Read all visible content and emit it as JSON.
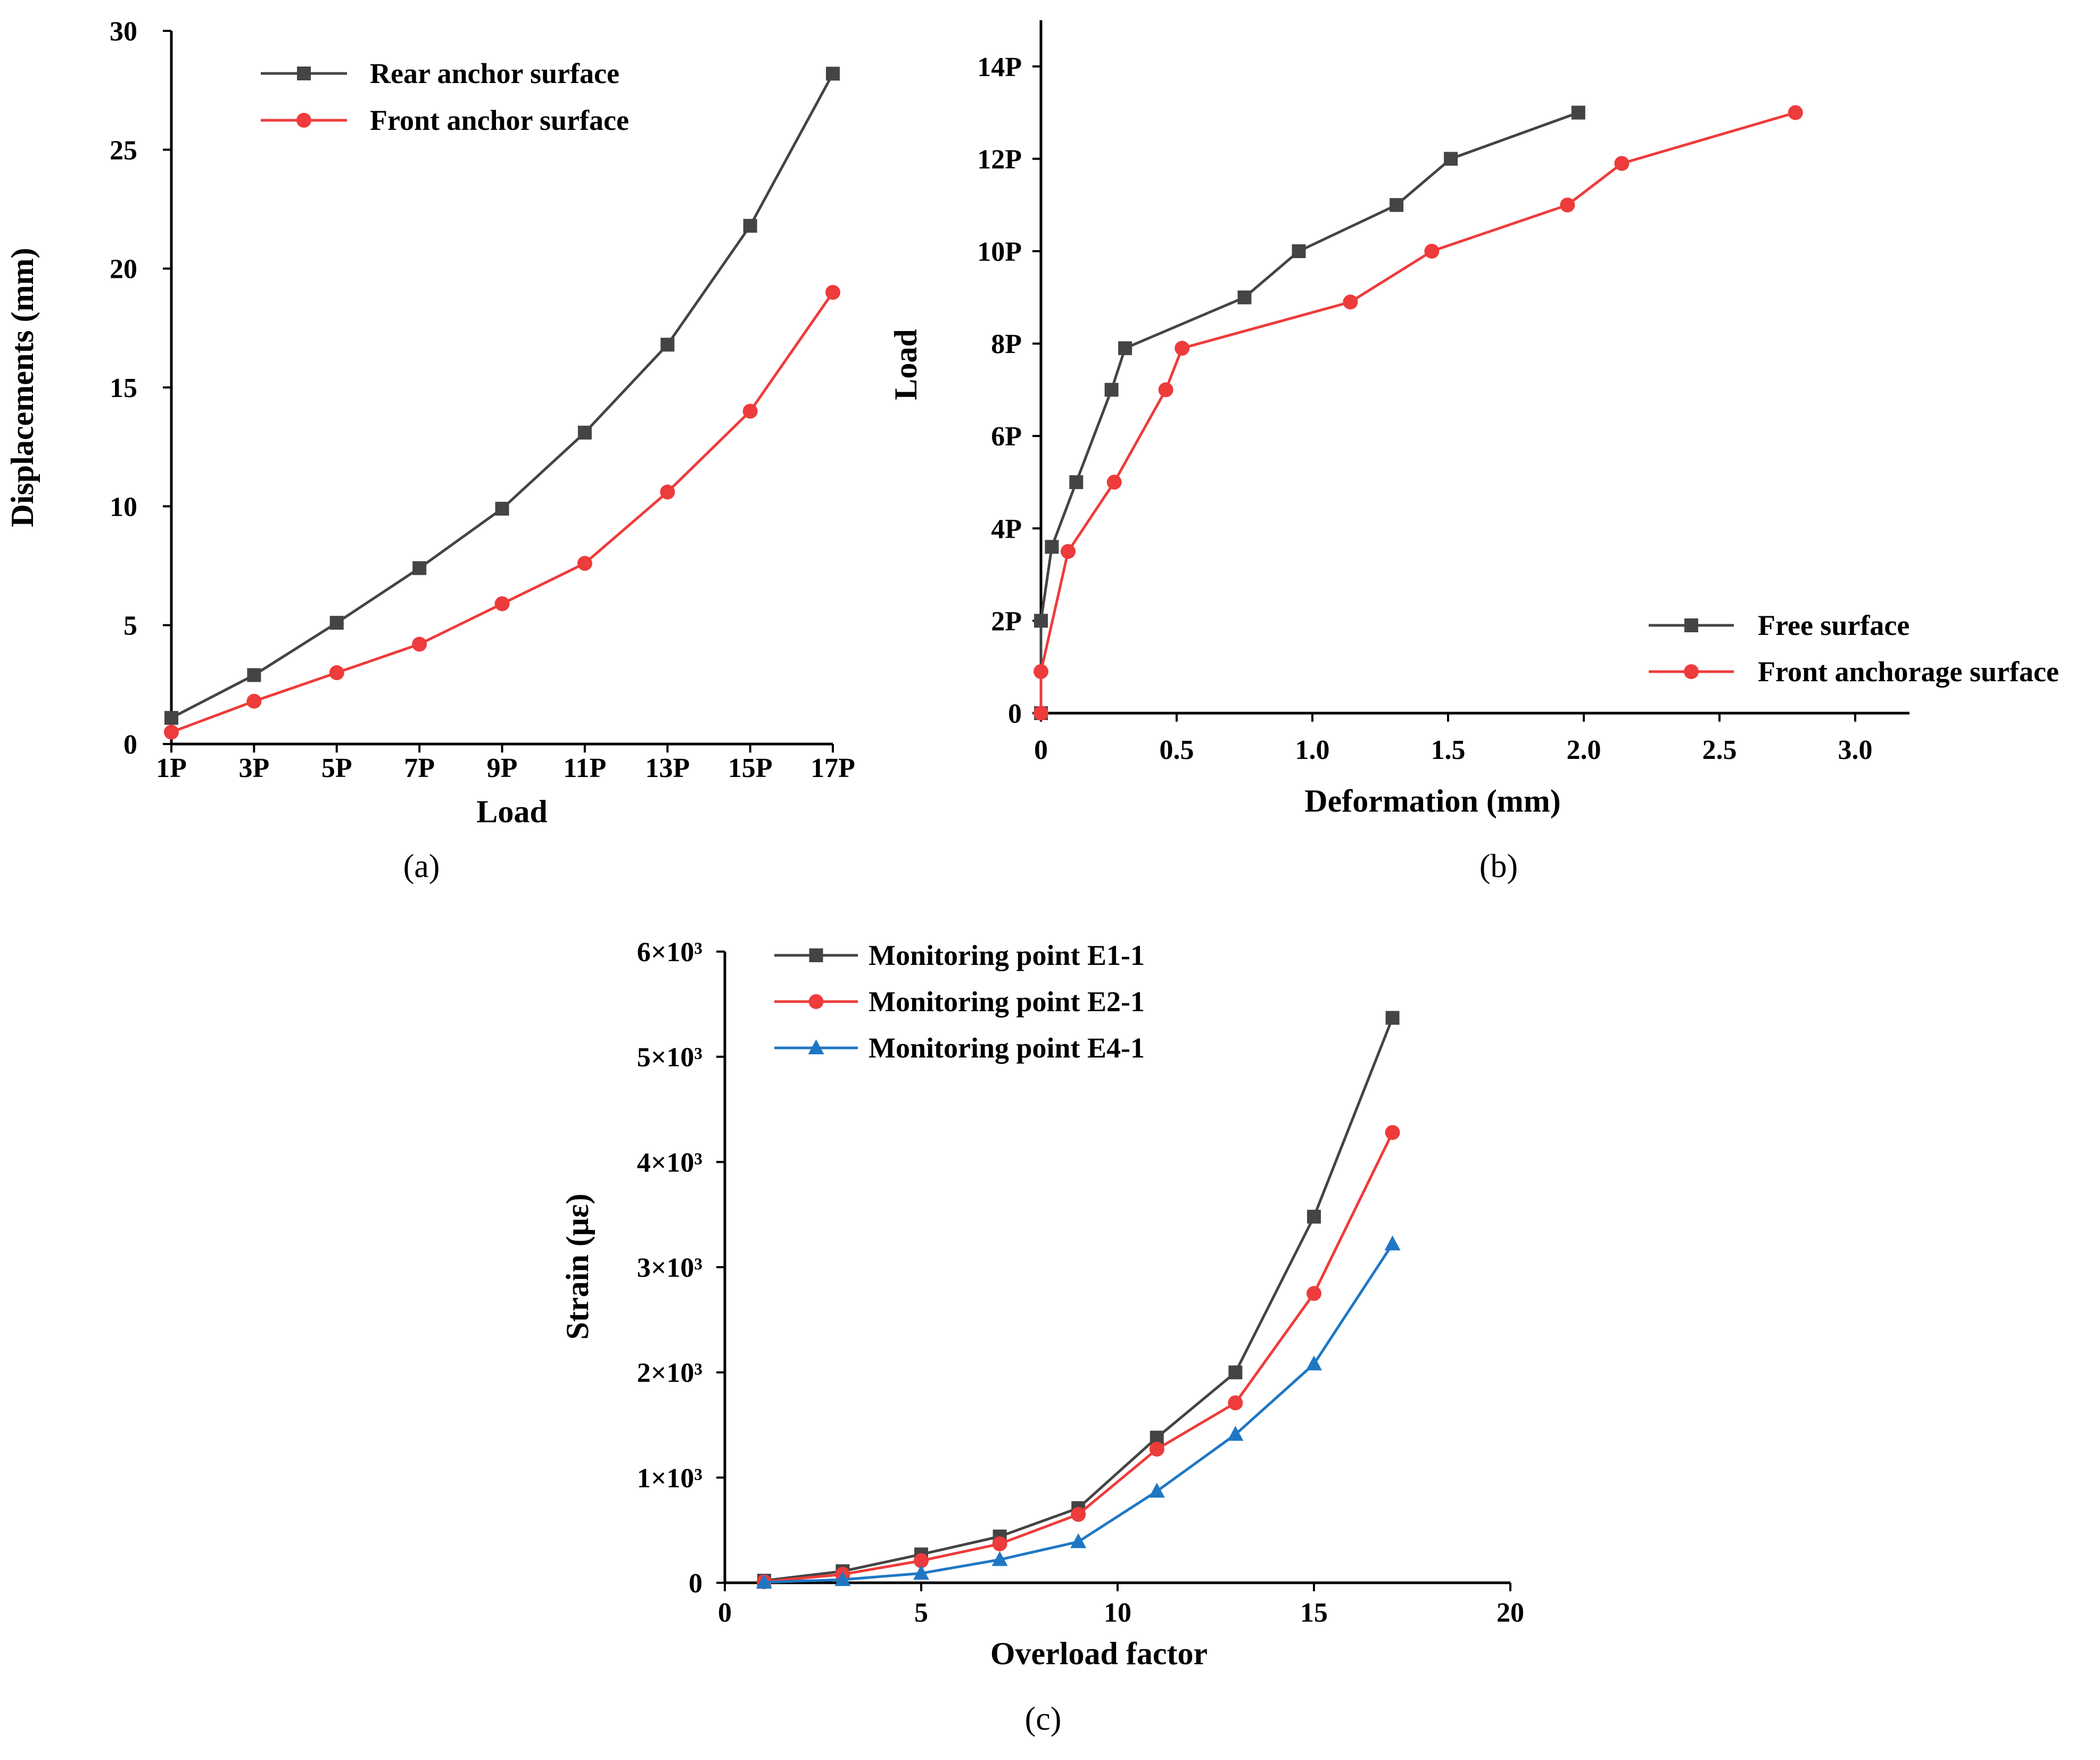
{
  "chart_data": [
    {
      "id": "a",
      "type": "line",
      "panel_label": "(a)",
      "xlabel": "Load",
      "ylabel": "Displacements (mm)",
      "x": [
        1,
        3,
        5,
        7,
        9,
        11,
        13,
        15,
        17
      ],
      "xticks": [
        1,
        3,
        5,
        7,
        9,
        11,
        13,
        15,
        17
      ],
      "xtick_labels": [
        "1P",
        "3P",
        "5P",
        "7P",
        "9P",
        "11P",
        "13P",
        "15P",
        "17P"
      ],
      "xlim": [
        1,
        17
      ],
      "yticks": [
        0,
        5,
        10,
        15,
        20,
        25,
        30
      ],
      "ytick_labels": [
        "0",
        "5",
        "10",
        "15",
        "20",
        "25",
        "30"
      ],
      "ylim": [
        0,
        30
      ],
      "legend_position": "top-left",
      "series": [
        {
          "name": "Rear anchor surface",
          "color": "#444444",
          "marker": "square",
          "values": [
            1.1,
            2.9,
            5.1,
            7.4,
            9.9,
            13.1,
            16.8,
            21.8,
            28.2
          ]
        },
        {
          "name": "Front anchor surface",
          "color": "#ee3b3b",
          "marker": "circle",
          "values": [
            0.5,
            1.8,
            3.0,
            4.2,
            5.9,
            7.6,
            10.6,
            14.0,
            19.0
          ]
        }
      ]
    },
    {
      "id": "b",
      "type": "line",
      "panel_label": "(b)",
      "xlabel": "Deformation (mm)",
      "ylabel": "Load",
      "xticks": [
        0,
        0.5,
        1.0,
        1.5,
        2.0,
        2.5,
        3.0
      ],
      "xtick_labels": [
        "0",
        "0.5",
        "1.0",
        "1.5",
        "2.0",
        "2.5",
        "3.0"
      ],
      "xlim": [
        0,
        3.2
      ],
      "yticks": [
        0,
        2,
        4,
        6,
        8,
        10,
        12,
        14
      ],
      "ytick_labels": [
        "0",
        "2P",
        "4P",
        "6P",
        "8P",
        "10P",
        "12P",
        "14P"
      ],
      "ylim": [
        0,
        15
      ],
      "legend_position": "bottom-right",
      "series": [
        {
          "name": "Free surface",
          "color": "#444444",
          "marker": "square",
          "points": [
            [
              0,
              0
            ],
            [
              0,
              2.0
            ],
            [
              0.04,
              3.6
            ],
            [
              0.13,
              5.0
            ],
            [
              0.26,
              7.0
            ],
            [
              0.31,
              7.9
            ],
            [
              0.75,
              9.0
            ],
            [
              0.95,
              10.0
            ],
            [
              1.31,
              11.0
            ],
            [
              1.51,
              12.0
            ],
            [
              1.98,
              13.0
            ]
          ]
        },
        {
          "name": "Front anchorage surface",
          "color": "#ee3b3b",
          "marker": "circle",
          "points": [
            [
              0,
              0
            ],
            [
              0,
              0.9
            ],
            [
              0.1,
              3.5
            ],
            [
              0.27,
              5.0
            ],
            [
              0.46,
              7.0
            ],
            [
              0.52,
              7.9
            ],
            [
              1.14,
              8.9
            ],
            [
              1.44,
              10.0
            ],
            [
              1.94,
              11.0
            ],
            [
              2.14,
              11.9
            ],
            [
              2.78,
              13.0
            ]
          ]
        }
      ]
    },
    {
      "id": "c",
      "type": "line",
      "panel_label": "(c)",
      "xlabel": "Overload factor",
      "ylabel": "Strain (με)",
      "xticks": [
        0,
        5,
        10,
        15,
        20
      ],
      "xtick_labels": [
        "0",
        "5",
        "10",
        "15",
        "20"
      ],
      "xlim": [
        0,
        20
      ],
      "yticks": [
        0,
        1000,
        2000,
        3000,
        4000,
        5000,
        6000
      ],
      "ytick_labels": [
        "0",
        "1×10³",
        "2×10³",
        "3×10³",
        "4×10³",
        "5×10³",
        "6×10³"
      ],
      "ylim": [
        0,
        6000
      ],
      "legend_position": "top-left",
      "series": [
        {
          "name": "Monitoring point E1-1",
          "color": "#444444",
          "marker": "square",
          "points": [
            [
              1,
              20
            ],
            [
              3,
              110
            ],
            [
              5,
              270
            ],
            [
              7,
              440
            ],
            [
              9,
              710
            ],
            [
              11,
              1380
            ],
            [
              13,
              2000
            ],
            [
              15,
              3480
            ],
            [
              17,
              5370
            ]
          ]
        },
        {
          "name": "Monitoring point E2-1",
          "color": "#ee3b3b",
          "marker": "circle",
          "points": [
            [
              1,
              10
            ],
            [
              3,
              80
            ],
            [
              5,
              210
            ],
            [
              7,
              370
            ],
            [
              9,
              650
            ],
            [
              11,
              1270
            ],
            [
              13,
              1710
            ],
            [
              15,
              2750
            ],
            [
              17,
              4280
            ]
          ]
        },
        {
          "name": "Monitoring point E4-1",
          "color": "#1f77c4",
          "marker": "triangle",
          "points": [
            [
              1,
              5
            ],
            [
              3,
              30
            ],
            [
              5,
              90
            ],
            [
              7,
              220
            ],
            [
              9,
              390
            ],
            [
              11,
              870
            ],
            [
              13,
              1410
            ],
            [
              15,
              2080
            ],
            [
              17,
              3220
            ]
          ]
        }
      ]
    }
  ]
}
